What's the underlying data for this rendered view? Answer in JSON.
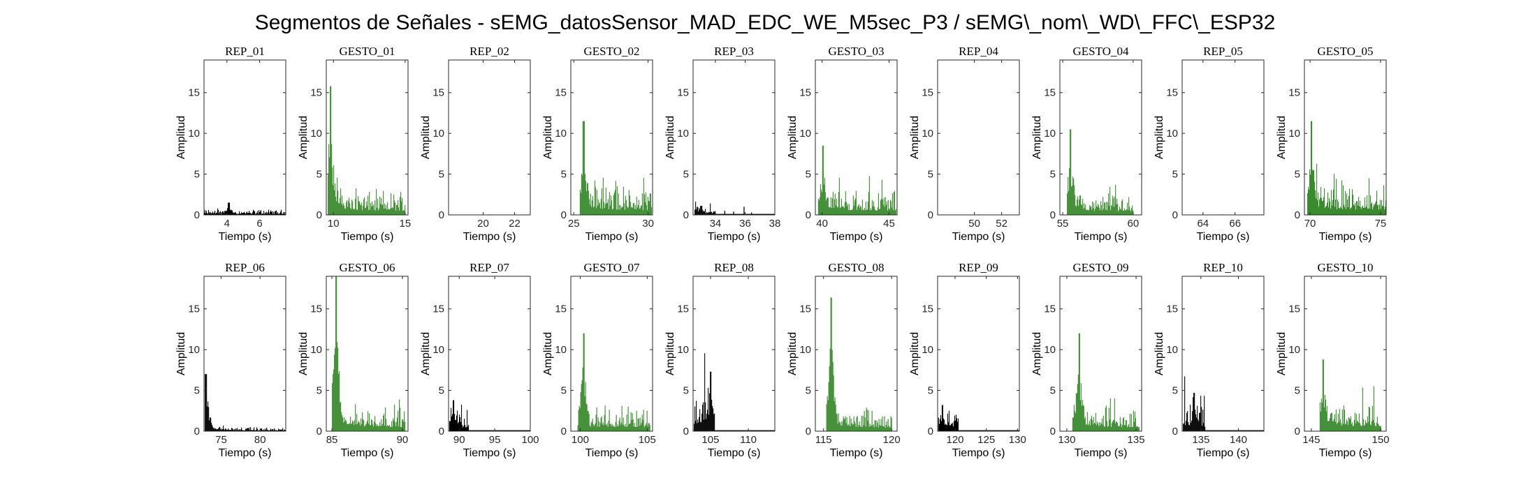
{
  "title": "Segmentos de Señales - sEMG_datosSensor_MAD_EDC_WE_M5sec_P3 / sEMG\\_nom\\_WD\\_FFC\\_ESP32",
  "colors": {
    "rep": "#000000",
    "gesto": "#3a8a2e",
    "axis": "#262626"
  },
  "chart_data": [
    {
      "type": "bar",
      "title": "REP_01",
      "color": "rep",
      "xlabel": "Tiempo (s)",
      "ylabel": "Amplitud",
      "xlim": [
        2.6,
        7.6
      ],
      "ylim": [
        0,
        19
      ],
      "xticks": [
        4,
        6
      ],
      "yticks": [
        0,
        5,
        10,
        15
      ],
      "x_range": [
        2.6,
        7.6
      ],
      "signal": {
        "level": 0.45,
        "peak": 1.5,
        "peak_at": 0.3,
        "decay": 0
      },
      "trailing_zero_to": null
    },
    {
      "type": "bar",
      "title": "GESTO_01",
      "color": "gesto",
      "xlabel": "Tiempo (s)",
      "ylabel": "Amplitud",
      "xlim": [
        9.5,
        15.2
      ],
      "ylim": [
        0,
        19
      ],
      "xticks": [
        10,
        15
      ],
      "yticks": [
        0,
        5,
        10,
        15
      ],
      "x_range": [
        9.6,
        15.0
      ],
      "signal": {
        "level": 2.0,
        "peak": 15.8,
        "peak_at": 0.03,
        "decay": 0.35
      },
      "trailing_zero_to": null
    },
    {
      "type": "bar",
      "title": "REP_02",
      "color": "rep",
      "xlabel": "Tiempo (s)",
      "ylabel": "Amplitud",
      "xlim": [
        17.8,
        23.0
      ],
      "ylim": [
        0,
        19
      ],
      "xticks": [
        20,
        22
      ],
      "yticks": [
        0,
        5,
        10,
        15
      ],
      "x_range": [
        17.8,
        23.0
      ],
      "signal": {
        "level": 0.02,
        "peak": 0.05,
        "peak_at": 0.5,
        "decay": 0
      },
      "trailing_zero_to": null
    },
    {
      "type": "bar",
      "title": "GESTO_02",
      "color": "gesto",
      "xlabel": "Tiempo (s)",
      "ylabel": "Amplitud",
      "xlim": [
        24.8,
        30.3
      ],
      "ylim": [
        0,
        19
      ],
      "xticks": [
        25,
        30
      ],
      "yticks": [
        0,
        5,
        10,
        15
      ],
      "x_range": [
        25.4,
        30.2
      ],
      "signal": {
        "level": 2.3,
        "peak": 11.5,
        "peak_at": 0.05,
        "decay": 0.3
      },
      "trailing_zero_to": null
    },
    {
      "type": "bar",
      "title": "REP_03",
      "color": "rep",
      "xlabel": "Tiempo (s)",
      "ylabel": "Amplitud",
      "xlim": [
        32.5,
        38.0
      ],
      "ylim": [
        0,
        19
      ],
      "xticks": [
        34,
        36,
        38
      ],
      "yticks": [
        0,
        5,
        10,
        15
      ],
      "x_range": [
        32.6,
        34.0
      ],
      "signal": {
        "level": 0.6,
        "peak": 1.1,
        "peak_at": 0.3,
        "decay": 0.4
      },
      "trailing_zero_to": 38.0,
      "sparse_spikes": [
        {
          "x": 34.6,
          "y": 0.5
        },
        {
          "x": 35.2,
          "y": 0.4
        },
        {
          "x": 35.9,
          "y": 1.0
        },
        {
          "x": 36.4,
          "y": 0.3
        }
      ]
    },
    {
      "type": "bar",
      "title": "GESTO_03",
      "color": "gesto",
      "xlabel": "Tiempo (s)",
      "ylabel": "Amplitud",
      "xlim": [
        39.5,
        45.6
      ],
      "ylim": [
        0,
        19
      ],
      "xticks": [
        40,
        45
      ],
      "yticks": [
        0,
        5,
        10,
        15
      ],
      "x_range": [
        39.7,
        45.5
      ],
      "signal": {
        "level": 2.0,
        "peak": 8.5,
        "peak_at": 0.06,
        "decay": 0.3
      },
      "trailing_zero_to": null
    },
    {
      "type": "bar",
      "title": "REP_04",
      "color": "rep",
      "xlabel": "Tiempo (s)",
      "ylabel": "Amplitud",
      "xlim": [
        47.3,
        53.3
      ],
      "ylim": [
        0,
        19
      ],
      "xticks": [
        50,
        52
      ],
      "yticks": [
        0,
        5,
        10,
        15
      ],
      "x_range": [
        47.3,
        53.3
      ],
      "signal": {
        "level": 0.02,
        "peak": 0.05,
        "peak_at": 0.5,
        "decay": 0
      },
      "trailing_zero_to": null
    },
    {
      "type": "bar",
      "title": "GESTO_04",
      "color": "gesto",
      "xlabel": "Tiempo (s)",
      "ylabel": "Amplitud",
      "xlim": [
        54.8,
        60.6
      ],
      "ylim": [
        0,
        19
      ],
      "xticks": [
        55,
        60
      ],
      "yticks": [
        0,
        5,
        10,
        15
      ],
      "x_range": [
        55.3,
        60.0
      ],
      "signal": {
        "level": 1.6,
        "peak": 10.5,
        "peak_at": 0.05,
        "decay": 0.45
      },
      "trailing_zero_to": null
    },
    {
      "type": "bar",
      "title": "REP_05",
      "color": "rep",
      "xlabel": "Tiempo (s)",
      "ylabel": "Amplitud",
      "xlim": [
        62.7,
        67.8
      ],
      "ylim": [
        0,
        19
      ],
      "xticks": [
        64,
        66
      ],
      "yticks": [
        0,
        5,
        10,
        15
      ],
      "x_range": [
        62.7,
        67.8
      ],
      "signal": {
        "level": 0.02,
        "peak": 0.05,
        "peak_at": 0.5,
        "decay": 0
      },
      "trailing_zero_to": null
    },
    {
      "type": "bar",
      "title": "GESTO_05",
      "color": "gesto",
      "xlabel": "Tiempo (s)",
      "ylabel": "Amplitud",
      "xlim": [
        69.6,
        75.4
      ],
      "ylim": [
        0,
        19
      ],
      "xticks": [
        70,
        75
      ],
      "yticks": [
        0,
        5,
        10,
        15
      ],
      "x_range": [
        69.8,
        75.4
      ],
      "signal": {
        "level": 2.3,
        "peak": 11.5,
        "peak_at": 0.05,
        "decay": 0.3
      },
      "trailing_zero_to": null
    },
    {
      "type": "bar",
      "title": "REP_06",
      "color": "rep",
      "xlabel": "Tiempo (s)",
      "ylabel": "Amplitud",
      "xlim": [
        72.8,
        83.3
      ],
      "ylim": [
        0,
        19
      ],
      "xticks": [
        75,
        80
      ],
      "yticks": [
        0,
        5,
        10,
        15
      ],
      "x_range": [
        72.9,
        83.2
      ],
      "signal": {
        "level": 0.3,
        "peak": 7.0,
        "peak_at": 0.01,
        "decay": 0.8
      },
      "trailing_zero_to": null
    },
    {
      "type": "bar",
      "title": "GESTO_06",
      "color": "gesto",
      "xlabel": "Tiempo (s)",
      "ylabel": "Amplitud",
      "xlim": [
        84.6,
        90.4
      ],
      "ylim": [
        0,
        19
      ],
      "xticks": [
        85,
        90
      ],
      "yticks": [
        0,
        5,
        10,
        15
      ],
      "x_range": [
        85.0,
        90.2
      ],
      "signal": {
        "level": 2.0,
        "peak": 19.0,
        "peak_at": 0.05,
        "decay": 0.4
      },
      "trailing_zero_to": null
    },
    {
      "type": "bar",
      "title": "REP_07",
      "color": "rep",
      "xlabel": "Tiempo (s)",
      "ylabel": "Amplitud",
      "xlim": [
        88.5,
        100.0
      ],
      "ylim": [
        0,
        19
      ],
      "xticks": [
        90,
        95,
        100
      ],
      "yticks": [
        0,
        5,
        10,
        15
      ],
      "x_range": [
        88.6,
        91.3
      ],
      "signal": {
        "level": 1.8,
        "peak": 3.8,
        "peak_at": 0.2,
        "decay": 0.3
      },
      "trailing_zero_to": 100.0
    },
    {
      "type": "bar",
      "title": "GESTO_07",
      "color": "gesto",
      "xlabel": "Tiempo (s)",
      "ylabel": "Amplitud",
      "xlim": [
        99.3,
        105.4
      ],
      "ylim": [
        0,
        19
      ],
      "xticks": [
        100,
        105
      ],
      "yticks": [
        0,
        5,
        10,
        15
      ],
      "x_range": [
        99.8,
        105.2
      ],
      "signal": {
        "level": 2.0,
        "peak": 12.0,
        "peak_at": 0.08,
        "decay": 0.0
      },
      "trailing_zero_to": null
    },
    {
      "type": "bar",
      "title": "REP_08",
      "color": "rep",
      "xlabel": "Tiempo (s)",
      "ylabel": "Amplitud",
      "xlim": [
        102.7,
        113.5
      ],
      "ylim": [
        0,
        19
      ],
      "xticks": [
        105,
        110
      ],
      "yticks": [
        0,
        5,
        10,
        15
      ],
      "x_range": [
        102.8,
        105.5
      ],
      "signal": {
        "level": 3.5,
        "peak": 7.3,
        "peak_at": 0.8,
        "decay": 0.0
      },
      "trailing_zero_to": 113.5
    },
    {
      "type": "bar",
      "title": "GESTO_08",
      "color": "gesto",
      "xlabel": "Tiempo (s)",
      "ylabel": "Amplitud",
      "xlim": [
        114.4,
        120.4
      ],
      "ylim": [
        0,
        19
      ],
      "xticks": [
        115,
        120
      ],
      "yticks": [
        0,
        5,
        10,
        15
      ],
      "x_range": [
        115.2,
        120.0
      ],
      "signal": {
        "level": 1.7,
        "peak": 16.4,
        "peak_at": 0.07,
        "decay": 0.4
      },
      "trailing_zero_to": null
    },
    {
      "type": "bar",
      "title": "REP_09",
      "color": "rep",
      "xlabel": "Tiempo (s)",
      "ylabel": "Amplitud",
      "xlim": [
        117.2,
        130.3
      ],
      "ylim": [
        0,
        19
      ],
      "xticks": [
        120,
        125,
        130
      ],
      "yticks": [
        0,
        5,
        10,
        15
      ],
      "x_range": [
        117.3,
        120.5
      ],
      "signal": {
        "level": 1.8,
        "peak": 3.2,
        "peak_at": 0.2,
        "decay": 0.2
      },
      "trailing_zero_to": 130.3
    },
    {
      "type": "bar",
      "title": "GESTO_09",
      "color": "gesto",
      "xlabel": "Tiempo (s)",
      "ylabel": "Amplitud",
      "xlim": [
        129.5,
        135.4
      ],
      "ylim": [
        0,
        19
      ],
      "xticks": [
        130,
        135
      ],
      "yticks": [
        0,
        5,
        10,
        15
      ],
      "x_range": [
        130.4,
        135.2
      ],
      "signal": {
        "level": 1.8,
        "peak": 12.0,
        "peak_at": 0.1,
        "decay": 0.4
      },
      "trailing_zero_to": null
    },
    {
      "type": "bar",
      "title": "REP_10",
      "color": "rep",
      "xlabel": "Tiempo (s)",
      "ylabel": "Amplitud",
      "xlim": [
        132.5,
        143.4
      ],
      "ylim": [
        0,
        19
      ],
      "xticks": [
        135,
        140
      ],
      "yticks": [
        0,
        5,
        10,
        15
      ],
      "x_range": [
        132.6,
        135.5
      ],
      "signal": {
        "level": 2.2,
        "peak": 4.7,
        "peak_at": 0.5,
        "decay": 0.1
      },
      "trailing_zero_to": 143.4
    },
    {
      "type": "bar",
      "title": "GESTO_10",
      "color": "gesto",
      "xlabel": "Tiempo (s)",
      "ylabel": "Amplitud",
      "xlim": [
        144.5,
        150.4
      ],
      "ylim": [
        0,
        19
      ],
      "xticks": [
        145,
        150
      ],
      "yticks": [
        0,
        5,
        10,
        15
      ],
      "x_range": [
        145.6,
        150.0
      ],
      "signal": {
        "level": 2.3,
        "peak": 8.8,
        "peak_at": 0.05,
        "decay": 0.3
      },
      "trailing_zero_to": null
    }
  ]
}
